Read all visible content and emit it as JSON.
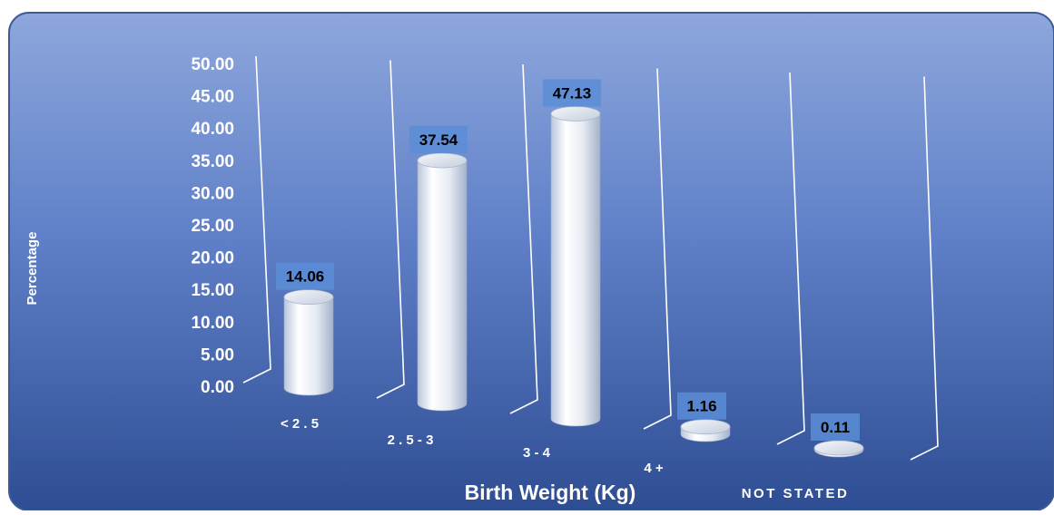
{
  "chart_data": {
    "type": "bar",
    "title": "",
    "xlabel": "Birth Weight (Kg)",
    "ylabel": "Percentage",
    "categories": [
      "< 2 . 5",
      "2 . 5 - 3",
      "3 - 4",
      "4 +",
      "NOT STATED"
    ],
    "values": [
      14.06,
      37.54,
      47.13,
      1.16,
      0.11
    ],
    "value_labels": [
      "14.06",
      "37.54",
      "47.13",
      "1.16",
      "0.11"
    ],
    "yticks": [
      "0.00",
      "5.00",
      "10.00",
      "15.00",
      "20.00",
      "25.00",
      "30.00",
      "35.00",
      "40.00",
      "45.00",
      "50.00"
    ],
    "ylim": [
      0,
      50
    ],
    "grid": false,
    "legend": "none",
    "colors": {
      "background_top": "#8EA7DC",
      "background_bottom": "#2E4D93",
      "bar": "#E8ECF4",
      "label_box": "#5B8DD6",
      "text": "#FFFFFF",
      "label_text": "#000000"
    }
  }
}
